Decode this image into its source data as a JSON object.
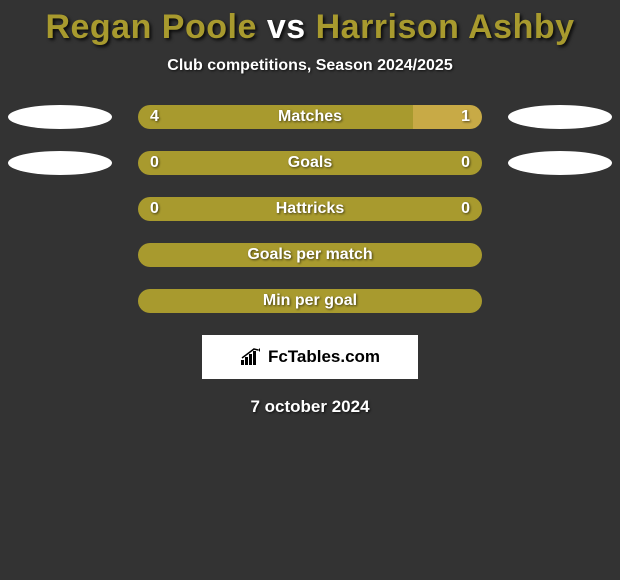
{
  "title": {
    "player1": "Regan Poole",
    "vs": " vs ",
    "player2": "Harrison Ashby",
    "color1": "#a89a2e",
    "color2": "#a89a2e",
    "vs_color": "#ffffff"
  },
  "subtitle": "Club competitions, Season 2024/2025",
  "subtitle_color": "#ffffff",
  "background_color": "#333333",
  "oval_color": "#ffffff",
  "stats": [
    {
      "label": "Matches",
      "left_value": "4",
      "right_value": "1",
      "left_pct": 80,
      "right_pct": 20,
      "left_color": "#a89a2e",
      "right_color": "#c8aa46",
      "show_left_oval": true,
      "show_right_oval": true
    },
    {
      "label": "Goals",
      "left_value": "0",
      "right_value": "0",
      "left_pct": 50,
      "right_pct": 50,
      "left_color": "#a89a2e",
      "right_color": "#a89a2e",
      "show_left_oval": true,
      "show_right_oval": true
    },
    {
      "label": "Hattricks",
      "left_value": "0",
      "right_value": "0",
      "left_pct": 50,
      "right_pct": 50,
      "left_color": "#a89a2e",
      "right_color": "#a89a2e",
      "show_left_oval": false,
      "show_right_oval": false
    },
    {
      "label": "Goals per match",
      "left_value": "",
      "right_value": "",
      "left_pct": 50,
      "right_pct": 50,
      "left_color": "#a89a2e",
      "right_color": "#a89a2e",
      "show_left_oval": false,
      "show_right_oval": false
    },
    {
      "label": "Min per goal",
      "left_value": "",
      "right_value": "",
      "left_pct": 50,
      "right_pct": 50,
      "left_color": "#a89a2e",
      "right_color": "#a89a2e",
      "show_left_oval": false,
      "show_right_oval": false
    }
  ],
  "badge": {
    "text": "FcTables.com",
    "background": "#ffffff",
    "text_color": "#000000"
  },
  "date": "7 october 2024"
}
